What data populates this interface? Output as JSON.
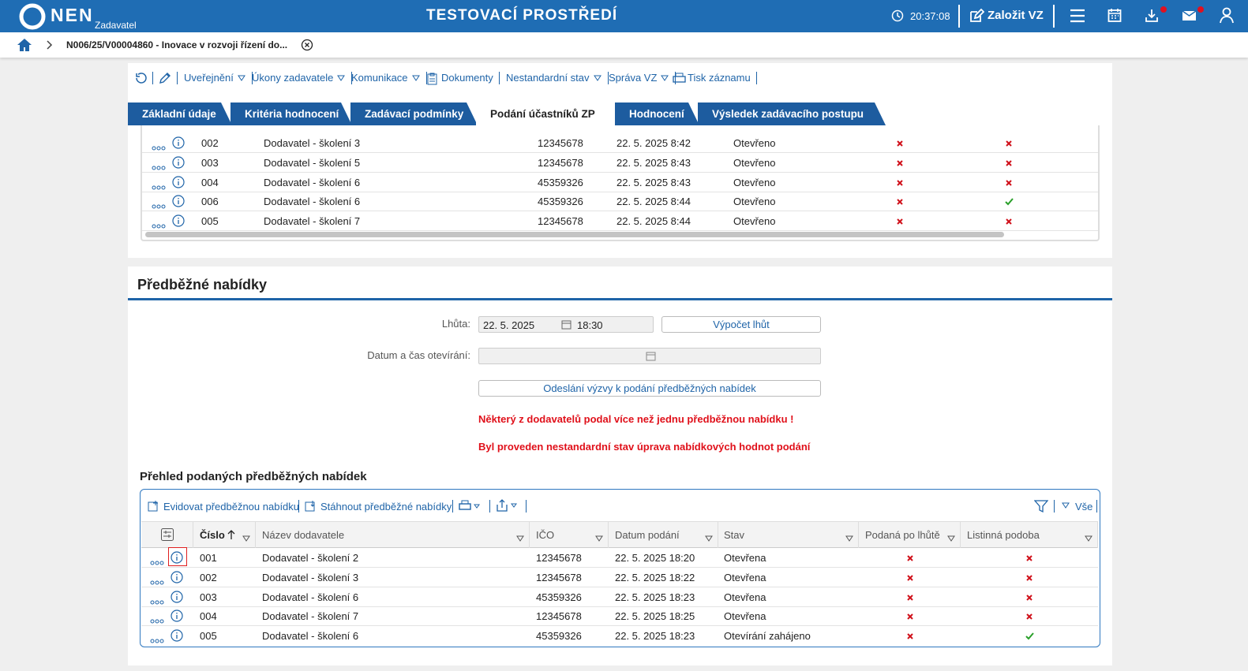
{
  "header": {
    "logo": "NEN",
    "role": "Zadavatel",
    "environment": "TESTOVACÍ PROSTŘEDÍ",
    "time": "20:37:08",
    "create": "Založit VZ"
  },
  "breadcrumb": "N006/25/V00004860 - Inovace v rozvoji řízení do...",
  "toolbar": [
    "Uveřejnění",
    "Úkony zadavatele",
    "Komunikace",
    "Dokumenty",
    "Nestandardní stav",
    "Správa VZ",
    "Tisk záznamu"
  ],
  "tabs": {
    "items": [
      "Základní údaje",
      "Kritéria hodnocení",
      "Zadávací podmínky",
      "Podání účastníků ZP",
      "Hodnocení",
      "Výsledek zadávacího postupu"
    ],
    "active": 3
  },
  "upper_table": {
    "rows": [
      [
        "002",
        "Dodavatel - školení 3",
        "12345678",
        "22. 5. 2025 8:42",
        "Otevřeno",
        false,
        false
      ],
      [
        "003",
        "Dodavatel - školení 5",
        "12345678",
        "22. 5. 2025 8:43",
        "Otevřeno",
        false,
        false
      ],
      [
        "004",
        "Dodavatel - školení 6",
        "45359326",
        "22. 5. 2025 8:43",
        "Otevřeno",
        false,
        false
      ],
      [
        "006",
        "Dodavatel - školení 6",
        "45359326",
        "22. 5. 2025 8:44",
        "Otevřeno",
        false,
        true
      ],
      [
        "005",
        "Dodavatel - školení 7",
        "12345678",
        "22. 5. 2025 8:44",
        "Otevřeno",
        false,
        false
      ]
    ]
  },
  "section": {
    "title": "Předběžné nabídky",
    "form": {
      "deadline_label": "Lhůta:",
      "deadline_date": "22. 5. 2025",
      "deadline_time": "18:30",
      "calc_button": "Výpočet lhůt",
      "opening_label": "Datum a čas otevírání:",
      "send_button": "Odeslání výzvy k podání předběžných nabídek"
    },
    "warnings": [
      "Některý z dodavatelů podal více než jednu předběžnou nabídku !",
      "Byl proveden nestandardní stav úprava nabídkových hodnot podání"
    ],
    "grid_title": "Přehled podaných předběžných nabídek",
    "grid_toolbar": {
      "add": "Evidovat předběžnou nabídku",
      "download": "Stáhnout předběžné nabídky",
      "filter": "Vše"
    },
    "table": {
      "columns": [
        "Číslo",
        "Název dodavatele",
        "IČO",
        "Datum podání",
        "Stav",
        "Podaná po lhůtě",
        "Listinná podoba"
      ],
      "rows": [
        [
          "001",
          "Dodavatel - školení 2",
          "12345678",
          "22. 5. 2025 18:20",
          "Otevřena",
          false,
          false
        ],
        [
          "002",
          "Dodavatel - školení 3",
          "12345678",
          "22. 5. 2025 18:22",
          "Otevřena",
          false,
          false
        ],
        [
          "003",
          "Dodavatel - školení 6",
          "45359326",
          "22. 5. 2025 18:23",
          "Otevřena",
          false,
          false
        ],
        [
          "004",
          "Dodavatel - školení 7",
          "12345678",
          "22. 5. 2025 18:25",
          "Otevřena",
          false,
          false
        ],
        [
          "005",
          "Dodavatel - školení 6",
          "45359326",
          "22. 5. 2025 18:23",
          "Otevírání zahájeno",
          false,
          true
        ]
      ]
    }
  }
}
